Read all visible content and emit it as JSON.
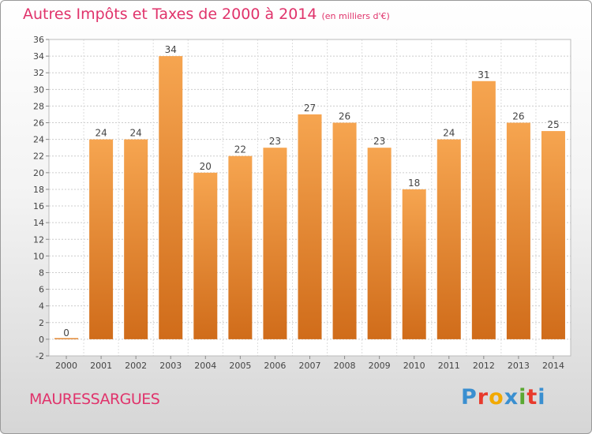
{
  "header": {
    "title": "Autres Impôts et Taxes de 2000 à 2014",
    "subtitle": "(en milliers d'€)"
  },
  "footer": {
    "commune": "MAURESSARGUES",
    "logo_text": "Proxiti",
    "logo_colors": [
      "#3a8fd0",
      "#e83a2c",
      "#f2a900",
      "#3a8fd0",
      "#5aa832",
      "#e83a2c",
      "#3a8fd0"
    ]
  },
  "colors": {
    "bar_top": "#f6a550",
    "bar_bottom": "#d06c1a",
    "axis_text": "#444444",
    "grid": "#cccccc"
  },
  "chart_data": {
    "type": "bar",
    "title": "Autres Impôts et Taxes de 2000 à 2014",
    "subtitle": "(en milliers d'€)",
    "categories": [
      "2000",
      "2001",
      "2002",
      "2003",
      "2004",
      "2005",
      "2006",
      "2007",
      "2008",
      "2009",
      "2010",
      "2011",
      "2012",
      "2013",
      "2014"
    ],
    "values": [
      0,
      24,
      24,
      34,
      20,
      22,
      23,
      27,
      26,
      23,
      18,
      24,
      31,
      26,
      25
    ],
    "data_labels": [
      "0",
      "24",
      "24",
      "34",
      "20",
      "22",
      "23",
      "27",
      "26",
      "23",
      "18",
      "24",
      "31",
      "26",
      "25"
    ],
    "ylim": [
      -2,
      36
    ],
    "yticks": [
      -2,
      0,
      2,
      4,
      6,
      8,
      10,
      12,
      14,
      16,
      18,
      20,
      22,
      24,
      26,
      28,
      30,
      32,
      34,
      36
    ],
    "ytick_labels": [
      "-2",
      "0",
      "2",
      "4",
      "6",
      "8",
      "10",
      "12",
      "14",
      "16",
      "18",
      "20",
      "22",
      "24",
      "26",
      "28",
      "30",
      "32",
      "34",
      "36"
    ],
    "xlabel": "",
    "ylabel": "",
    "grid": "horizontal-dashed"
  }
}
